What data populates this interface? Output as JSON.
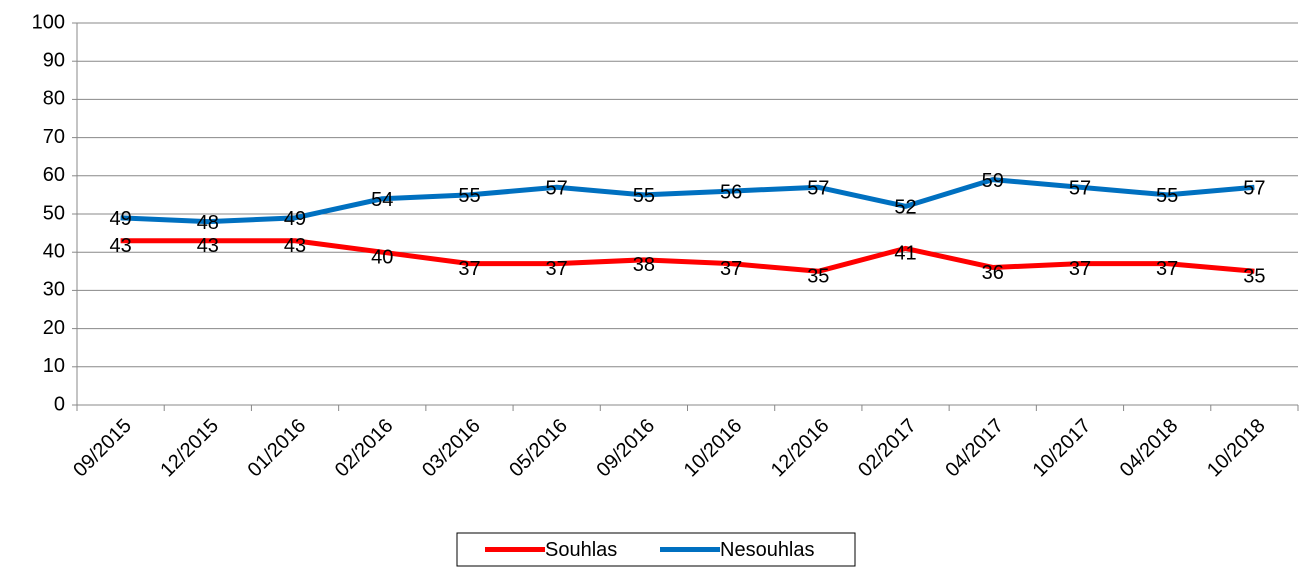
{
  "chart_data": {
    "type": "line",
    "categories": [
      "09/2015",
      "12/2015",
      "01/2016",
      "02/2016",
      "03/2016",
      "05/2016",
      "09/2016",
      "10/2016",
      "12/2016",
      "02/2017",
      "04/2017",
      "10/2017",
      "04/2018",
      "10/2018"
    ],
    "series": [
      {
        "name": "Souhlas",
        "color": "#ff0000",
        "values": [
          43,
          43,
          43,
          40,
          37,
          37,
          38,
          37,
          35,
          41,
          36,
          37,
          37,
          35
        ]
      },
      {
        "name": "Nesouhlas",
        "color": "#0070c0",
        "values": [
          49,
          48,
          49,
          54,
          55,
          57,
          55,
          56,
          57,
          52,
          59,
          57,
          55,
          57
        ]
      }
    ],
    "ylim": [
      0,
      100
    ],
    "yticks": [
      0,
      10,
      20,
      30,
      40,
      50,
      60,
      70,
      80,
      90,
      100
    ],
    "grid": true,
    "legend": "bottom"
  }
}
